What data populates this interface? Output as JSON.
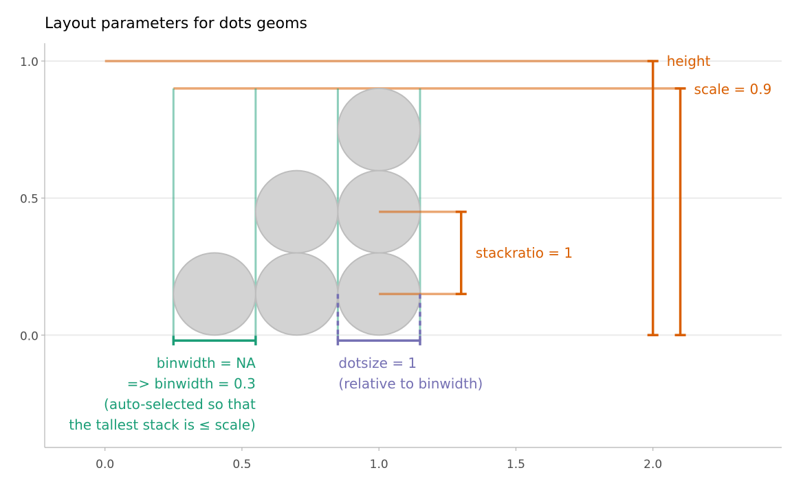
{
  "chart_data": {
    "type": "diagram",
    "title": "Layout parameters for dots geoms",
    "xlim": [
      -0.22,
      2.47
    ],
    "ylim": [
      -0.41,
      1.065
    ],
    "x_ticks": [
      "0.0",
      "0.5",
      "1.0",
      "1.5",
      "2.0"
    ],
    "x_tick_values": [
      0,
      0.5,
      1,
      1.5,
      2
    ],
    "y_ticks": [
      "0.0",
      "0.5",
      "1.0"
    ],
    "y_tick_values": [
      0,
      0.5,
      1
    ],
    "grid": "major horizontal",
    "colors": {
      "orange": "#d95f02",
      "green": "#1b9e77",
      "purple": "#7570b3",
      "dot_fill": "#d3d3d3",
      "dot_stroke": "#bdbdbd"
    },
    "dots": [
      {
        "x": 0.4,
        "y": 0.15
      },
      {
        "x": 0.7,
        "y": 0.15
      },
      {
        "x": 0.7,
        "y": 0.45
      },
      {
        "x": 1.0,
        "y": 0.15
      },
      {
        "x": 1.0,
        "y": 0.45
      },
      {
        "x": 1.0,
        "y": 0.75
      }
    ],
    "dot_radius": 0.15,
    "bin_edges": [
      0.25,
      0.55,
      0.85,
      1.15
    ],
    "annotations": {
      "height": {
        "label": "height",
        "value": 1.0,
        "bracket_x": 2.0
      },
      "scale": {
        "label": "scale = 0.9",
        "value": 0.9,
        "bracket_x": 2.1
      },
      "stackratio": {
        "label": "stackratio = 1",
        "from": 0.15,
        "to": 0.45,
        "bracket_x": 1.3
      },
      "binwidth": {
        "lines": [
          "binwidth = NA",
          "=> binwidth = 0.3",
          "(auto-selected so that",
          "the tallest stack is ≤ scale)"
        ],
        "from": 0.25,
        "to": 0.55
      },
      "dotsize": {
        "lines": [
          "dotsize = 1",
          "(relative to binwidth)"
        ],
        "from": 0.85,
        "to": 1.15
      }
    }
  }
}
